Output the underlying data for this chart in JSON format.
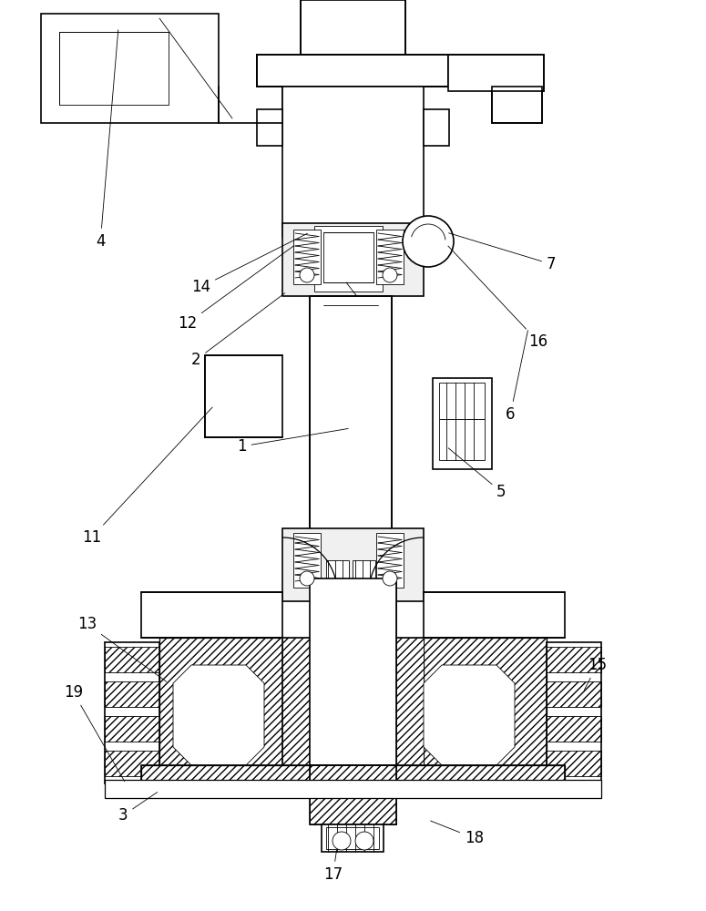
{
  "bg": "#ffffff",
  "lc": "#000000",
  "lw": 1.2,
  "lt": 0.6,
  "lm": 0.9,
  "fs": 12,
  "figsize": [
    7.75,
    10.0
  ],
  "dpi": 100
}
